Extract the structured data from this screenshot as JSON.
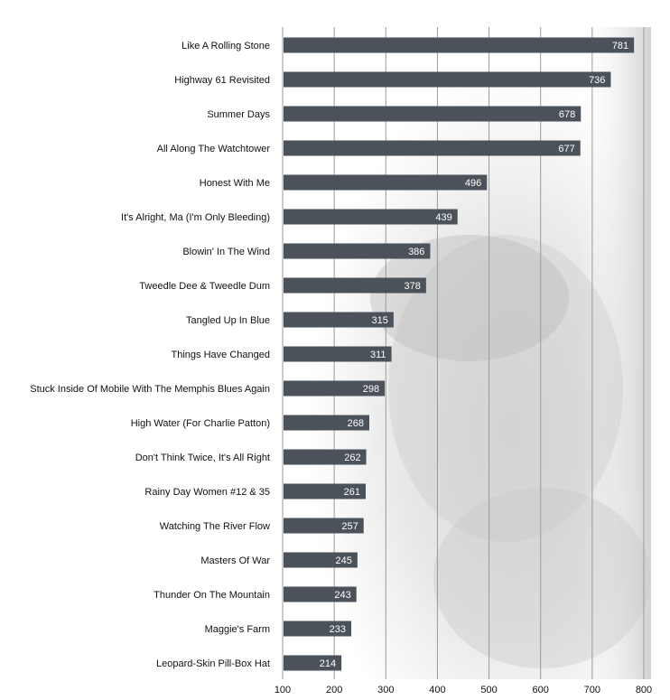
{
  "chart_data": {
    "type": "bar",
    "orientation": "horizontal",
    "categories": [
      "Like A Rolling Stone",
      "Highway 61 Revisited",
      "Summer Days",
      "All Along The Watchtower",
      "Honest With Me",
      "It's Alright, Ma (I'm Only Bleeding)",
      "Blowin' In The Wind",
      "Tweedle Dee & Tweedle Dum",
      "Tangled Up In Blue",
      "Things Have Changed",
      "Stuck Inside Of Mobile With The Memphis Blues Again",
      "High Water (For Charlie Patton)",
      "Don't Think Twice, It's All Right",
      "Rainy Day Women #12 & 35",
      "Watching The River Flow",
      "Masters Of War",
      "Thunder On The Mountain",
      "Maggie's Farm",
      "Leopard-Skin Pill-Box Hat"
    ],
    "values": [
      781,
      736,
      678,
      677,
      496,
      439,
      386,
      378,
      315,
      311,
      298,
      268,
      262,
      261,
      257,
      245,
      243,
      233,
      214
    ],
    "title": "",
    "xlabel": "",
    "ylabel": "",
    "xlim": [
      100,
      800
    ],
    "xticks": [
      100,
      200,
      300,
      400,
      500,
      600,
      700,
      800
    ],
    "grid": "vertical",
    "legend": "none",
    "colors": {
      "bar": "#4b5259",
      "value_label": "#ffffff",
      "grid": "#9a9a9a"
    }
  }
}
